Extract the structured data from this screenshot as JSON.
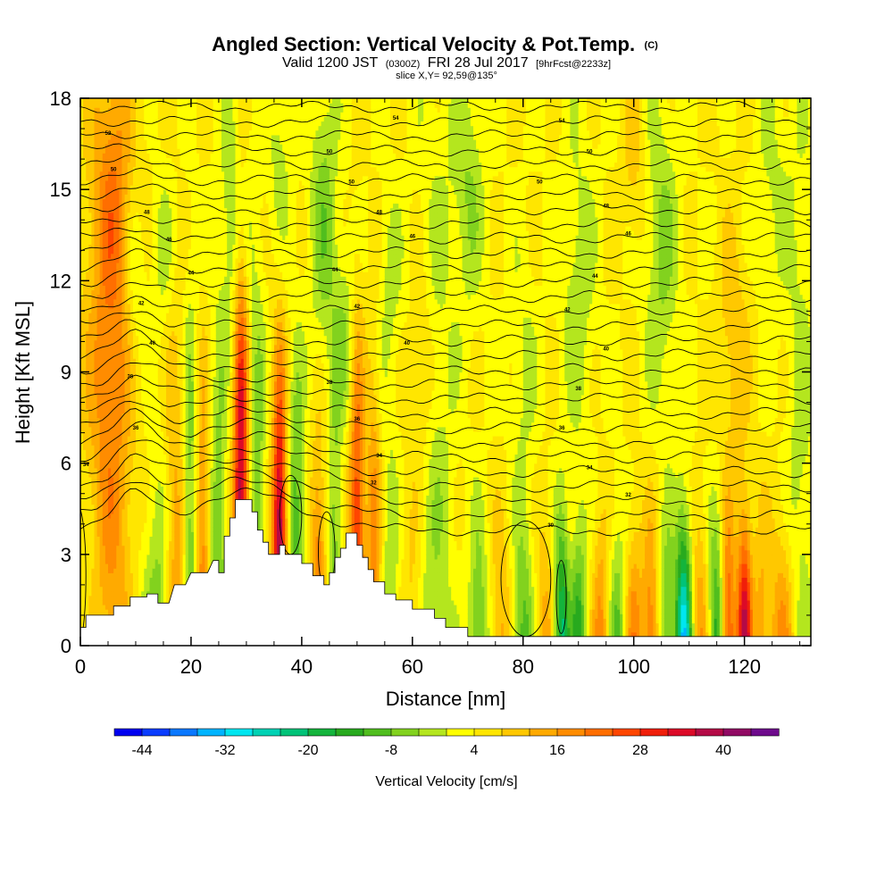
{
  "title": {
    "main": "Angled Section: Vertical Velocity & Pot.Temp.",
    "units_tag": "(C)",
    "valid_prefix": "Valid 1200 JST",
    "valid_utc": "(0300Z)",
    "valid_date": "FRI 28 Jul 2017",
    "forecast": "[9hrFcst@2233z]",
    "slice": "slice X,Y= 92,59@135°"
  },
  "chart_data": {
    "type": "heatmap",
    "xlabel": "Distance [nm]",
    "ylabel": "Height [Kft MSL]",
    "xlim": [
      0,
      132
    ],
    "ylim": [
      0,
      18
    ],
    "xticks": [
      0,
      20,
      40,
      60,
      80,
      100,
      120
    ],
    "yticks": [
      0,
      3,
      6,
      9,
      12,
      15,
      18
    ],
    "colorbar": {
      "label": "Vertical Velocity [cm/s]",
      "tick_labels": [
        "-44",
        "-32",
        "-20",
        "-8",
        "4",
        "16",
        "28",
        "40"
      ],
      "tick_values": [
        -44,
        -32,
        -20,
        -8,
        4,
        16,
        28,
        40
      ],
      "range": [
        -48,
        48
      ],
      "step": 4,
      "colors": [
        "#0000f0",
        "#0a3cff",
        "#0a78ff",
        "#00b4ff",
        "#00e6f0",
        "#00d2b4",
        "#00c378",
        "#14b43c",
        "#28aa1e",
        "#50be1e",
        "#82d21e",
        "#b4e61e",
        "#ffff00",
        "#ffe600",
        "#ffc800",
        "#ffaa00",
        "#ff8c00",
        "#ff6e00",
        "#ff4600",
        "#f01e0a",
        "#dc0a28",
        "#b40a46",
        "#910a64",
        "#6e0a8c"
      ]
    },
    "theta_contour_labels": [
      {
        "x": 57,
        "y": 17.3,
        "text": "54"
      },
      {
        "x": 87,
        "y": 17.2,
        "text": "54"
      },
      {
        "x": 5,
        "y": 16.8,
        "text": "52"
      },
      {
        "x": 45,
        "y": 16.2,
        "text": "50"
      },
      {
        "x": 92,
        "y": 16.2,
        "text": "50"
      },
      {
        "x": 6,
        "y": 15.6,
        "text": "50"
      },
      {
        "x": 49,
        "y": 15.2,
        "text": "50"
      },
      {
        "x": 83,
        "y": 15.2,
        "text": "50"
      },
      {
        "x": 12,
        "y": 14.2,
        "text": "48"
      },
      {
        "x": 54,
        "y": 14.2,
        "text": "48"
      },
      {
        "x": 95,
        "y": 14.4,
        "text": "48"
      },
      {
        "x": 16,
        "y": 13.3,
        "text": "46"
      },
      {
        "x": 60,
        "y": 13.4,
        "text": "46"
      },
      {
        "x": 99,
        "y": 13.5,
        "text": "46"
      },
      {
        "x": 20,
        "y": 12.2,
        "text": "44"
      },
      {
        "x": 46,
        "y": 12.3,
        "text": "44"
      },
      {
        "x": 93,
        "y": 12.1,
        "text": "44"
      },
      {
        "x": 11,
        "y": 11.2,
        "text": "42"
      },
      {
        "x": 50,
        "y": 11.1,
        "text": "42"
      },
      {
        "x": 88,
        "y": 11.0,
        "text": "42"
      },
      {
        "x": 13,
        "y": 9.9,
        "text": "40"
      },
      {
        "x": 59,
        "y": 9.9,
        "text": "40"
      },
      {
        "x": 95,
        "y": 9.7,
        "text": "40"
      },
      {
        "x": 9,
        "y": 8.8,
        "text": "38"
      },
      {
        "x": 45,
        "y": 8.6,
        "text": "38"
      },
      {
        "x": 90,
        "y": 8.4,
        "text": "38"
      },
      {
        "x": 50,
        "y": 7.4,
        "text": "36"
      },
      {
        "x": 10,
        "y": 7.1,
        "text": "36"
      },
      {
        "x": 87,
        "y": 7.1,
        "text": "36"
      },
      {
        "x": 1,
        "y": 5.9,
        "text": "34"
      },
      {
        "x": 54,
        "y": 6.2,
        "text": "34"
      },
      {
        "x": 92,
        "y": 5.8,
        "text": "34"
      },
      {
        "x": 53,
        "y": 5.3,
        "text": "32"
      },
      {
        "x": 99,
        "y": 4.9,
        "text": "32"
      },
      {
        "x": 85,
        "y": 3.9,
        "text": "30"
      }
    ]
  }
}
